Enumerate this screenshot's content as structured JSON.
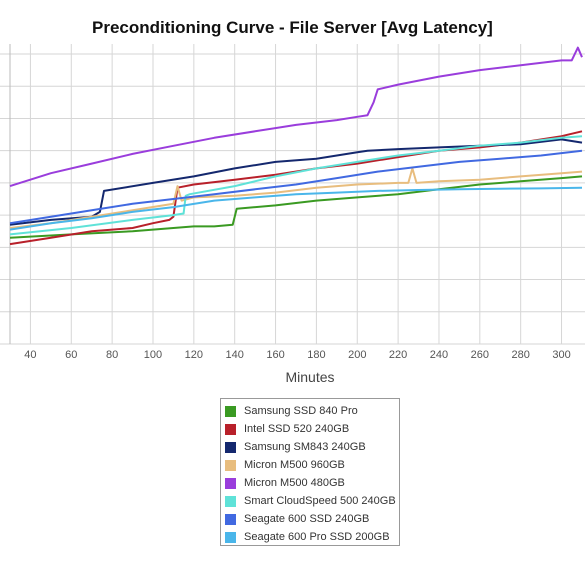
{
  "chart_data": {
    "type": "line",
    "title": "Preconditioning Curve - File Server [Avg Latency]",
    "xlabel": "Minutes",
    "ylabel": "",
    "xlim": [
      30,
      310
    ],
    "ylim": [
      0,
      9
    ],
    "xticks": [
      40,
      60,
      80,
      100,
      120,
      140,
      160,
      180,
      200,
      220,
      240,
      260,
      280,
      300
    ],
    "grid": true,
    "legend_position": "bottom-center",
    "series": [
      {
        "name": "Samsung SSD 840 Pro",
        "color": "#3a9a22",
        "x": [
          30,
          60,
          90,
          100,
          110,
          120,
          130,
          139,
          141,
          160,
          180,
          200,
          220,
          240,
          260,
          280,
          300,
          310
        ],
        "y": [
          3.3,
          3.4,
          3.5,
          3.55,
          3.6,
          3.65,
          3.65,
          3.7,
          4.2,
          4.3,
          4.45,
          4.55,
          4.65,
          4.8,
          4.95,
          5.05,
          5.15,
          5.2
        ]
      },
      {
        "name": "Intel SSD 520 240GB",
        "color": "#b8202a",
        "x": [
          30,
          50,
          70,
          90,
          100,
          108,
          110,
          112,
          120,
          140,
          160,
          180,
          200,
          220,
          240,
          260,
          280,
          300,
          310
        ],
        "y": [
          3.1,
          3.3,
          3.5,
          3.6,
          3.75,
          3.85,
          3.95,
          4.85,
          4.95,
          5.1,
          5.25,
          5.45,
          5.6,
          5.8,
          6.0,
          6.1,
          6.25,
          6.45,
          6.6
        ]
      },
      {
        "name": "Samsung SM843 240GB",
        "color": "#14286e",
        "x": [
          30,
          50,
          70,
          74,
          76,
          100,
          120,
          140,
          160,
          180,
          200,
          205,
          220,
          240,
          260,
          280,
          300,
          310
        ],
        "y": [
          3.7,
          3.85,
          3.95,
          4.1,
          4.75,
          5.0,
          5.2,
          5.45,
          5.65,
          5.75,
          5.95,
          6.0,
          6.05,
          6.1,
          6.15,
          6.2,
          6.35,
          6.25
        ]
      },
      {
        "name": "Micron M500 960GB",
        "color": "#e8bd7e",
        "x": [
          30,
          50,
          70,
          90,
          110,
          112,
          114,
          120,
          140,
          160,
          180,
          200,
          220,
          225,
          227,
          229,
          240,
          260,
          280,
          300,
          310
        ],
        "y": [
          3.6,
          3.75,
          3.95,
          4.15,
          4.35,
          4.9,
          4.45,
          4.55,
          4.6,
          4.7,
          4.85,
          4.95,
          5.0,
          5.0,
          5.45,
          5.0,
          5.05,
          5.1,
          5.2,
          5.3,
          5.35
        ]
      },
      {
        "name": "Micron M500 480GB",
        "color": "#9a3ddc",
        "x": [
          30,
          50,
          70,
          90,
          110,
          130,
          150,
          170,
          190,
          200,
          205,
          208,
          210,
          220,
          240,
          260,
          280,
          300,
          305,
          308,
          310
        ],
        "y": [
          4.9,
          5.3,
          5.6,
          5.9,
          6.15,
          6.4,
          6.6,
          6.8,
          6.95,
          7.05,
          7.1,
          7.5,
          7.9,
          8.05,
          8.3,
          8.5,
          8.65,
          8.8,
          8.8,
          9.2,
          8.9
        ]
      },
      {
        "name": "Smart CloudSpeed 500 240GB",
        "color": "#5fe2d8",
        "x": [
          30,
          60,
          90,
          110,
          115,
          116,
          118,
          140,
          160,
          180,
          200,
          220,
          240,
          260,
          280,
          300,
          310
        ],
        "y": [
          3.4,
          3.6,
          3.85,
          4.0,
          4.05,
          4.6,
          4.65,
          4.9,
          5.2,
          5.45,
          5.65,
          5.85,
          6.0,
          6.15,
          6.25,
          6.4,
          6.45
        ]
      },
      {
        "name": "Seagate 600 SSD 240GB",
        "color": "#4169e1",
        "x": [
          30,
          50,
          70,
          90,
          110,
          130,
          150,
          170,
          190,
          210,
          230,
          250,
          270,
          290,
          310
        ],
        "y": [
          3.75,
          3.95,
          4.15,
          4.35,
          4.5,
          4.65,
          4.8,
          4.95,
          5.15,
          5.35,
          5.5,
          5.65,
          5.75,
          5.85,
          6.0
        ]
      },
      {
        "name": "Seagate 600 Pro SSD 200GB",
        "color": "#4ab6ea",
        "x": [
          30,
          50,
          70,
          90,
          110,
          130,
          150,
          170,
          190,
          210,
          230,
          250,
          270,
          290,
          310
        ],
        "y": [
          3.55,
          3.75,
          3.9,
          4.1,
          4.25,
          4.45,
          4.55,
          4.65,
          4.7,
          4.75,
          4.78,
          4.8,
          4.82,
          4.83,
          4.85
        ]
      }
    ]
  }
}
